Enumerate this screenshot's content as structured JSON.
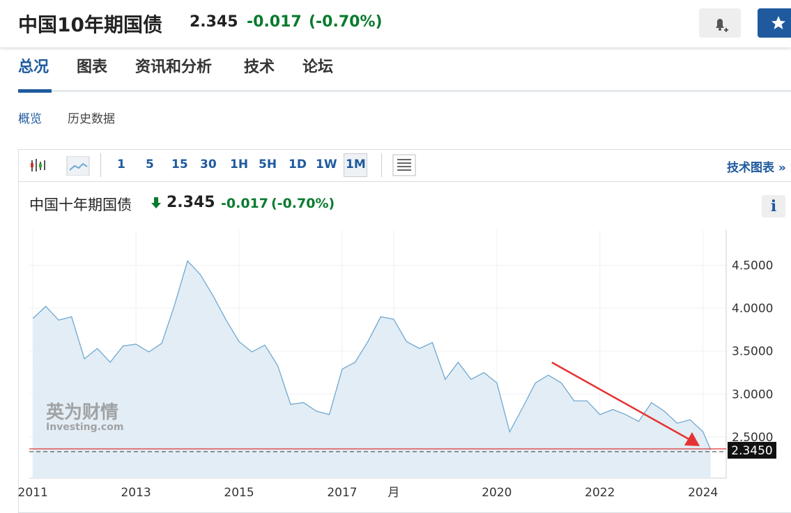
{
  "header": {
    "title": "中国10年期国债",
    "price": "2.345",
    "change": "-0.017",
    "change_pct": "(-0.70%)"
  },
  "tabs": [
    "总况",
    "图表",
    "资讯和分析",
    "技术",
    "论坛"
  ],
  "subtabs": [
    "概览",
    "历史数据"
  ],
  "intervals": [
    "1",
    "5",
    "15",
    "30",
    "1H",
    "5H",
    "1D",
    "1W",
    "1M"
  ],
  "advanced_chart_link": "技术图表 »",
  "info_button": "i",
  "chart_data": {
    "type": "line",
    "title": "中国十年期国债",
    "price": "2.345",
    "change": "-0.017",
    "change_pct": "(-0.70%)",
    "watermark": [
      "英为财情",
      "Investing.com"
    ],
    "x": [
      2011,
      2011.25,
      2011.5,
      2011.75,
      2012,
      2012.25,
      2012.5,
      2012.75,
      2013,
      2013.25,
      2013.5,
      2013.75,
      2014,
      2014.25,
      2014.5,
      2014.75,
      2015,
      2015.25,
      2015.5,
      2015.75,
      2016,
      2016.25,
      2016.5,
      2016.75,
      2017,
      2017.25,
      2017.5,
      2017.75,
      2018,
      2018.25,
      2018.5,
      2018.75,
      2019,
      2019.25,
      2019.5,
      2019.75,
      2020,
      2020.25,
      2020.5,
      2020.75,
      2021,
      2021.25,
      2021.5,
      2021.75,
      2022,
      2022.25,
      2022.5,
      2022.75,
      2023,
      2023.25,
      2023.5,
      2023.75,
      2024,
      2024.15
    ],
    "values": [
      3.88,
      4.02,
      3.86,
      3.9,
      3.41,
      3.53,
      3.37,
      3.56,
      3.58,
      3.49,
      3.59,
      4.04,
      4.55,
      4.39,
      4.14,
      3.86,
      3.61,
      3.49,
      3.57,
      3.33,
      2.88,
      2.9,
      2.8,
      2.76,
      3.29,
      3.37,
      3.61,
      3.9,
      3.87,
      3.61,
      3.53,
      3.6,
      3.17,
      3.37,
      3.17,
      3.25,
      3.13,
      2.56,
      2.84,
      3.13,
      3.22,
      3.13,
      2.92,
      2.92,
      2.76,
      2.82,
      2.76,
      2.68,
      2.9,
      2.8,
      2.66,
      2.7,
      2.56,
      2.35
    ],
    "color": "#6fa8d0",
    "fill": "#e3edf5",
    "xlim": [
      2010.93,
      2024.45
    ],
    "ylim": [
      2.02,
      4.91
    ],
    "xticks": [
      2011,
      2013,
      2015,
      2017,
      {
        "value": 2018,
        "label": "月"
      },
      2020,
      2022,
      2024
    ],
    "yticks": [
      {
        "value": 2.5,
        "label": "2.5000"
      },
      {
        "value": 3,
        "label": "3.0000"
      },
      {
        "value": 3.5,
        "label": "3.5000"
      },
      {
        "value": 4,
        "label": "4.0000"
      },
      {
        "value": 4.5,
        "label": "4.5000"
      }
    ],
    "grid": true,
    "price_line": {
      "value": 2.345,
      "label": "2.3450",
      "color": "#d33"
    }
  }
}
